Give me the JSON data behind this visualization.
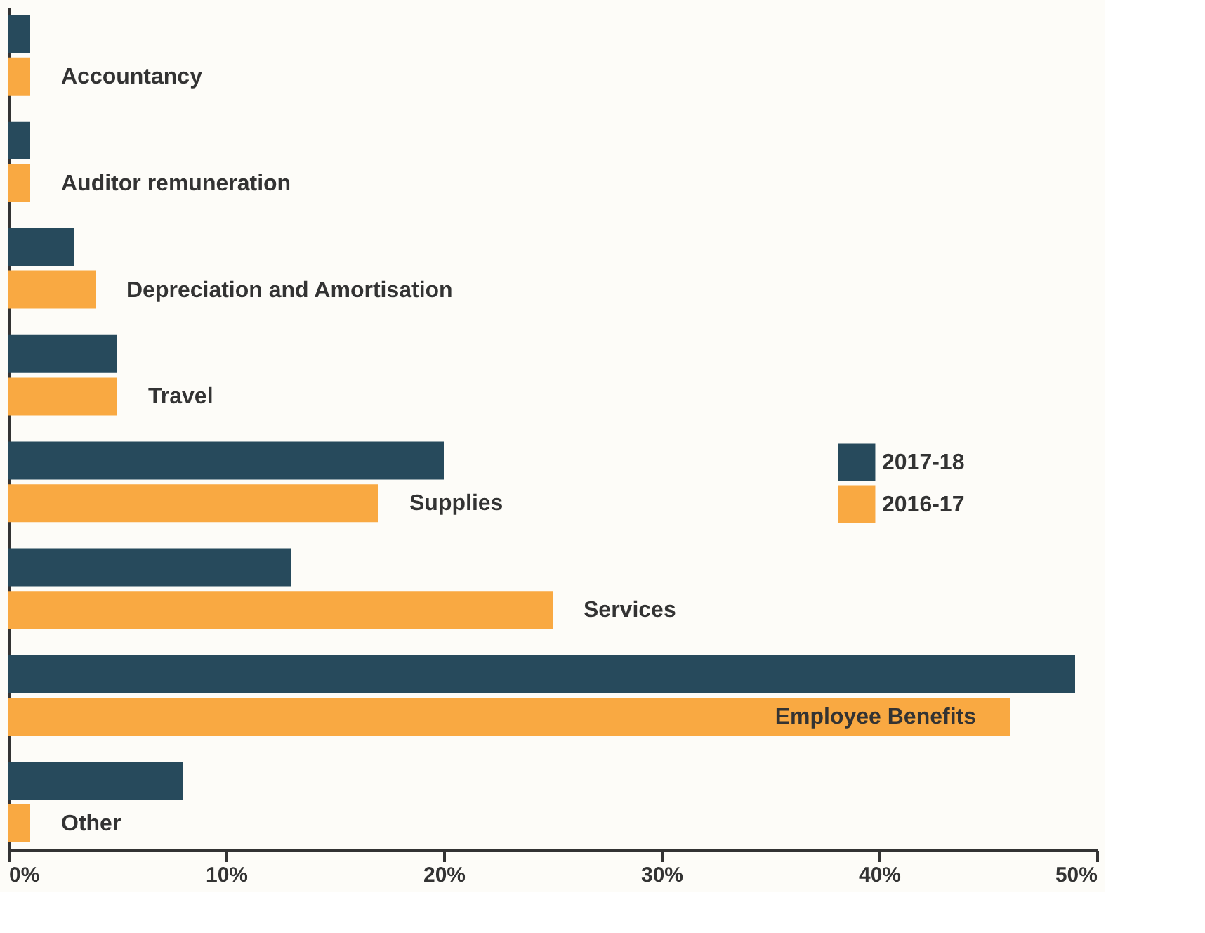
{
  "chart_data": {
    "type": "bar",
    "orientation": "horizontal",
    "categories": [
      "Accountancy",
      "Auditor remuneration",
      "Depreciation and Amortisation",
      "Travel",
      "Supplies",
      "Services",
      "Employee Benefits",
      "Other"
    ],
    "series": [
      {
        "name": "2017-18",
        "color": "#274a5c",
        "values": [
          1,
          1,
          3,
          5,
          20,
          13,
          49,
          8
        ]
      },
      {
        "name": "2016-17",
        "color": "#f9a942",
        "values": [
          1,
          1,
          4,
          5,
          17,
          25,
          46,
          1
        ]
      }
    ],
    "xlim": [
      0,
      50
    ],
    "xticks": [
      {
        "value": 0,
        "label": "0%"
      },
      {
        "value": 10,
        "label": "10%"
      },
      {
        "value": 20,
        "label": "20%"
      },
      {
        "value": 30,
        "label": "30%"
      },
      {
        "value": 40,
        "label": "40%"
      },
      {
        "value": 50,
        "label": "50%"
      }
    ],
    "tick_labels": "x",
    "grid": false,
    "legend": "right"
  }
}
